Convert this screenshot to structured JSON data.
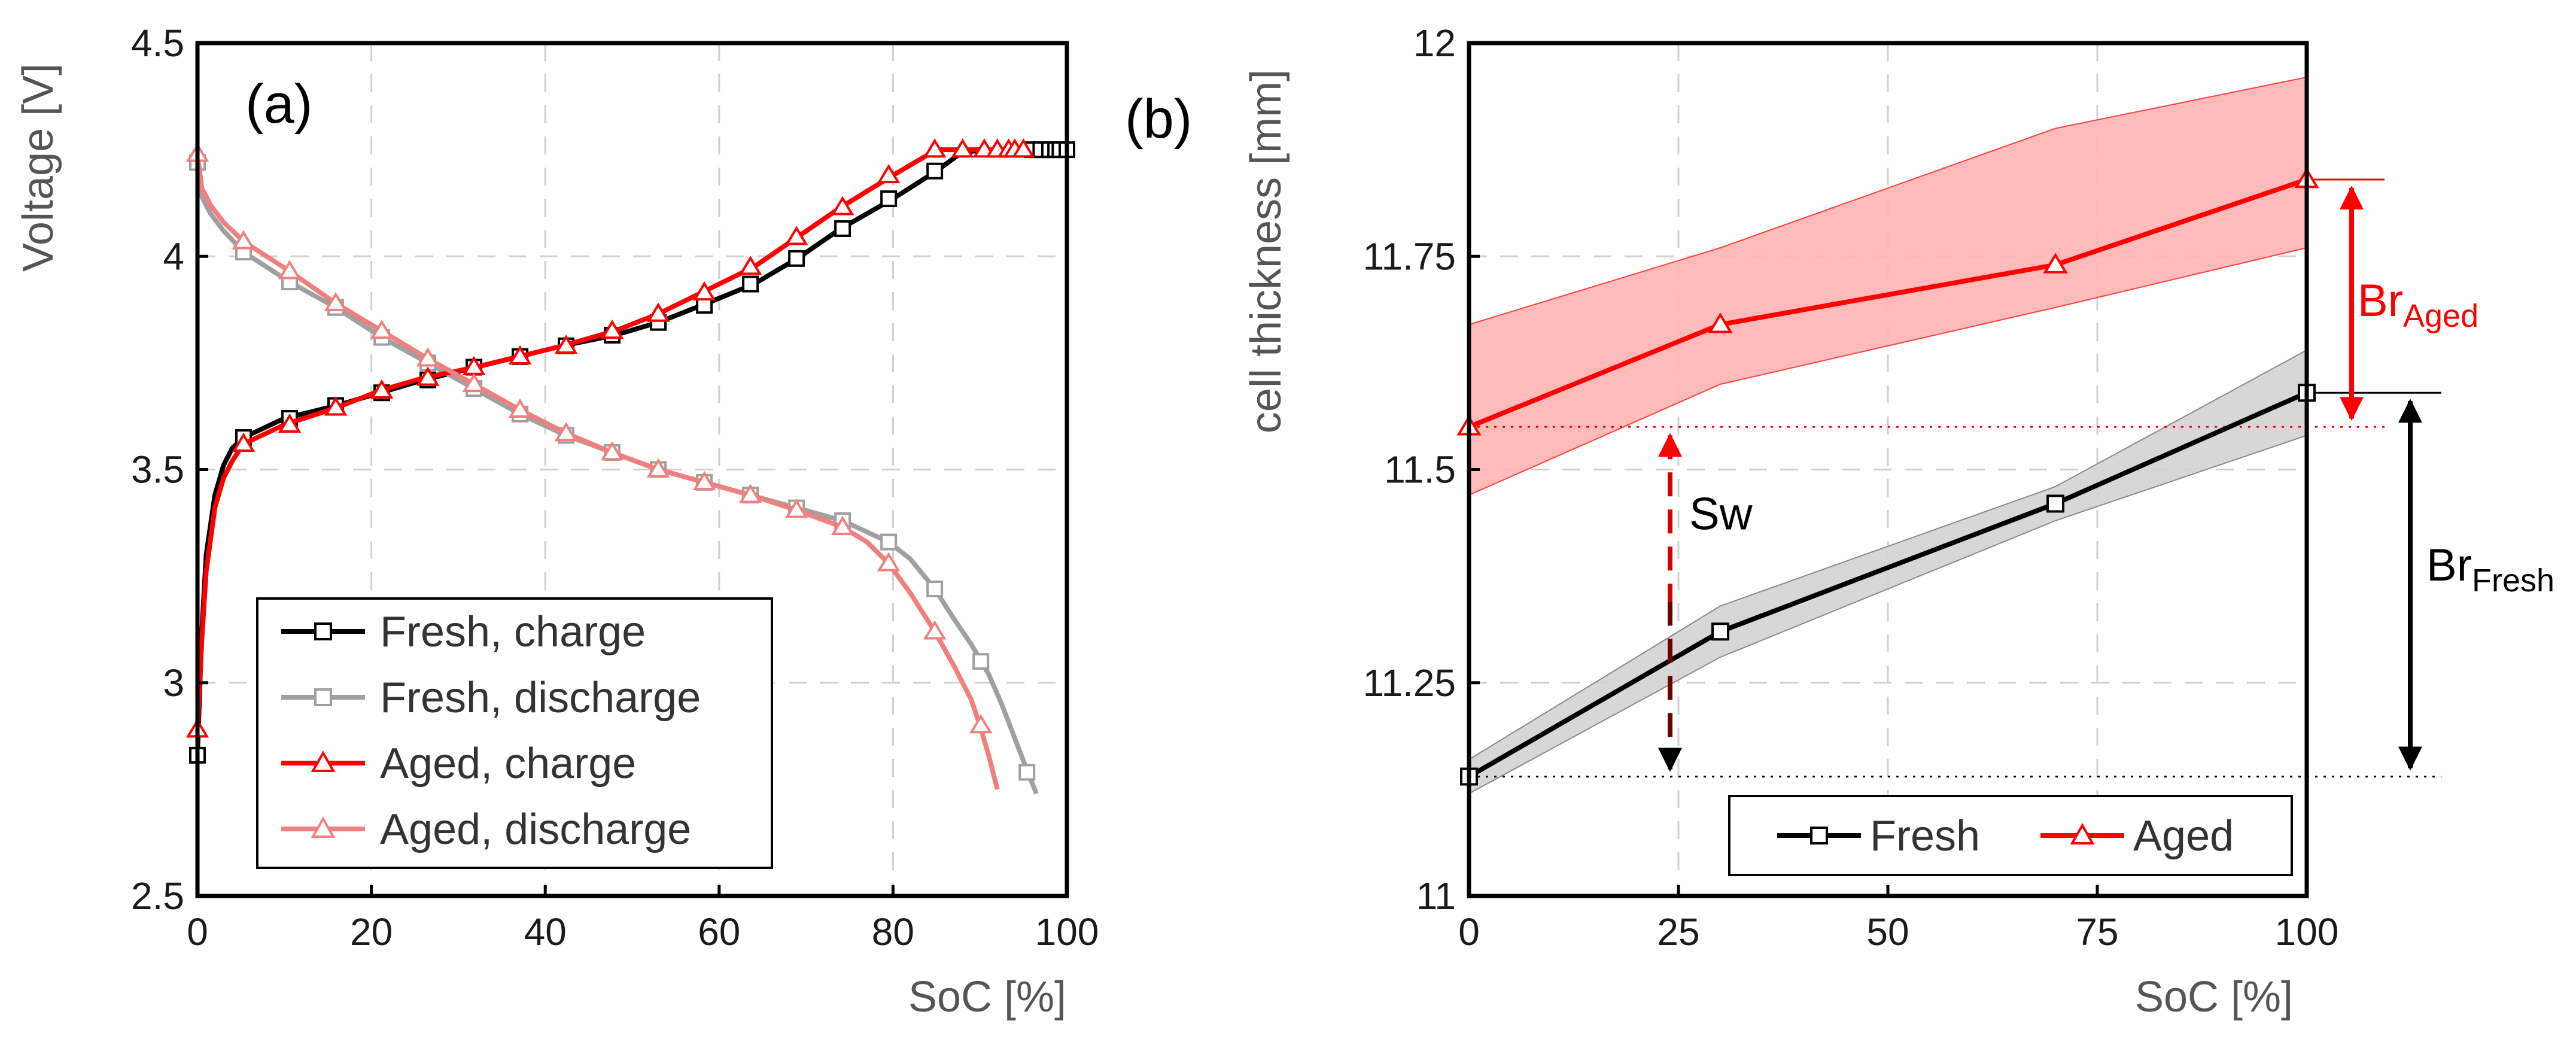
{
  "chart_data": [
    {
      "type": "line",
      "panel_label": "(a)",
      "xlabel": "SoC [%]",
      "ylabel": "Voltage [V]",
      "xlim": [
        0,
        100
      ],
      "ylim": [
        2.5,
        4.5
      ],
      "xticks": [
        0,
        20,
        40,
        60,
        80,
        100
      ],
      "yticks": [
        2.5,
        3,
        3.5,
        4,
        4.5
      ],
      "ytick_labels": [
        "2.5",
        "3",
        "3.5",
        "4",
        "4.5"
      ],
      "grid": true,
      "legend_position": "bottom-center",
      "series": [
        {
          "name": "Fresh, charge",
          "color": "#000000",
          "marker": "square",
          "line_x": [
            0,
            0.5,
            1,
            2,
            3,
            4,
            5.3,
            10,
            16,
            21,
            26,
            32,
            37,
            42,
            48,
            53,
            58,
            64,
            69,
            74,
            80,
            85,
            88,
            92,
            95,
            97,
            98,
            99,
            100
          ],
          "line_y": [
            2.83,
            3.12,
            3.3,
            3.44,
            3.51,
            3.55,
            3.575,
            3.62,
            3.65,
            3.68,
            3.71,
            3.74,
            3.765,
            3.79,
            3.815,
            3.845,
            3.885,
            3.935,
            3.995,
            4.065,
            4.135,
            4.2,
            4.245,
            4.25,
            4.25,
            4.25,
            4.25,
            4.25,
            4.25
          ],
          "marker_x": [
            0,
            5.3,
            10.6,
            15.9,
            21.2,
            26.5,
            31.8,
            37.1,
            42.4,
            47.7,
            53,
            58.3,
            63.6,
            68.9,
            74.2,
            79.5,
            84.8,
            96,
            97,
            98,
            98.7,
            99.2,
            100
          ],
          "marker_y": [
            2.83,
            3.575,
            3.62,
            3.65,
            3.68,
            3.71,
            3.74,
            3.765,
            3.79,
            3.815,
            3.845,
            3.885,
            3.935,
            3.995,
            4.065,
            4.135,
            4.2,
            4.25,
            4.25,
            4.25,
            4.25,
            4.25,
            4.25
          ]
        },
        {
          "name": "Fresh, discharge",
          "color": "#a0a0a0",
          "marker": "square",
          "line_x": [
            0,
            0.5,
            1.5,
            3,
            5.3,
            10.6,
            15.9,
            21.2,
            26.5,
            31.8,
            37.1,
            42.4,
            47.7,
            53,
            58.3,
            63.6,
            68.9,
            74.2,
            79.5,
            82,
            84.8,
            87,
            89,
            91,
            92.5,
            94,
            95.5,
            96.5
          ],
          "line_y": [
            4.22,
            4.14,
            4.1,
            4.06,
            4.01,
            3.94,
            3.88,
            3.81,
            3.75,
            3.69,
            3.63,
            3.58,
            3.54,
            3.5,
            3.47,
            3.44,
            3.41,
            3.38,
            3.33,
            3.29,
            3.22,
            3.15,
            3.09,
            3.02,
            2.95,
            2.87,
            2.79,
            2.74
          ],
          "marker_x": [
            0,
            5.3,
            10.6,
            15.9,
            21.2,
            26.5,
            31.8,
            37.1,
            42.4,
            47.7,
            53,
            58.3,
            63.6,
            68.9,
            74.2,
            79.5,
            84.8,
            90.1,
            95.4
          ],
          "marker_y": [
            4.22,
            4.01,
            3.94,
            3.88,
            3.81,
            3.75,
            3.69,
            3.63,
            3.58,
            3.54,
            3.5,
            3.47,
            3.44,
            3.41,
            3.38,
            3.33,
            3.22,
            3.05,
            2.79
          ]
        },
        {
          "name": "Aged, charge",
          "color": "#ff0000",
          "marker": "triangle",
          "line_x": [
            0,
            0.5,
            1,
            2,
            3,
            4,
            5.3,
            10,
            16,
            21,
            26,
            32,
            37,
            42,
            48,
            53,
            58,
            64,
            69,
            74,
            80,
            85,
            88,
            95
          ],
          "line_y": [
            2.89,
            3.1,
            3.26,
            3.41,
            3.48,
            3.52,
            3.56,
            3.605,
            3.645,
            3.685,
            3.715,
            3.74,
            3.765,
            3.79,
            3.825,
            3.865,
            3.915,
            3.975,
            4.045,
            4.115,
            4.19,
            4.25,
            4.25,
            4.25
          ],
          "marker_x": [
            0,
            5.3,
            10.6,
            15.9,
            21.2,
            26.5,
            31.8,
            37.1,
            42.4,
            47.7,
            53,
            58.3,
            63.6,
            68.9,
            74.2,
            79.5,
            84.8,
            88,
            90.5,
            92,
            93.3,
            94,
            95
          ],
          "marker_y": [
            2.89,
            3.56,
            3.605,
            3.645,
            3.685,
            3.715,
            3.74,
            3.765,
            3.79,
            3.825,
            3.865,
            3.915,
            3.975,
            4.045,
            4.115,
            4.19,
            4.25,
            4.25,
            4.25,
            4.25,
            4.25,
            4.25,
            4.25
          ]
        },
        {
          "name": "Aged, discharge",
          "color": "#f08080",
          "marker": "triangle",
          "line_x": [
            0,
            0.5,
            1.5,
            3,
            5.3,
            10.6,
            15.9,
            21.2,
            26.5,
            31.8,
            37.1,
            42.4,
            47.7,
            53,
            58.3,
            63.6,
            68.9,
            74.2,
            77,
            79.5,
            82,
            84.8,
            87,
            89,
            90,
            91,
            92
          ],
          "line_y": [
            4.24,
            4.16,
            4.12,
            4.08,
            4.035,
            3.965,
            3.89,
            3.825,
            3.76,
            3.7,
            3.64,
            3.585,
            3.54,
            3.5,
            3.47,
            3.44,
            3.405,
            3.365,
            3.33,
            3.28,
            3.21,
            3.12,
            3.04,
            2.96,
            2.9,
            2.83,
            2.75
          ],
          "marker_x": [
            0,
            5.3,
            10.6,
            15.9,
            21.2,
            26.5,
            31.8,
            37.1,
            42.4,
            47.7,
            53,
            58.3,
            63.6,
            68.9,
            74.2,
            79.5,
            84.8,
            90.1
          ],
          "marker_y": [
            4.24,
            4.035,
            3.965,
            3.89,
            3.825,
            3.76,
            3.7,
            3.64,
            3.585,
            3.54,
            3.5,
            3.47,
            3.44,
            3.405,
            3.365,
            3.28,
            3.12,
            2.9
          ]
        }
      ]
    },
    {
      "type": "line",
      "panel_label": "(b)",
      "xlabel": "SoC [%]",
      "ylabel": "cell thickness [mm]",
      "xlim": [
        0,
        100
      ],
      "ylim": [
        11,
        12
      ],
      "xticks": [
        0,
        25,
        50,
        75,
        100
      ],
      "yticks": [
        11,
        11.25,
        11.5,
        11.75,
        12
      ],
      "ytick_labels": [
        "11",
        "11.25",
        "11.5",
        "11.75",
        "12"
      ],
      "grid": true,
      "legend_position": "bottom-right",
      "series": [
        {
          "name": "Fresh",
          "color": "#000000",
          "marker": "square",
          "x": [
            0,
            30,
            70,
            100
          ],
          "y": [
            11.14,
            11.31,
            11.46,
            11.59
          ],
          "band_upper": [
            11.16,
            11.34,
            11.48,
            11.64
          ],
          "band_lower": [
            11.12,
            11.28,
            11.44,
            11.54
          ]
        },
        {
          "name": "Aged",
          "color": "#ff0000",
          "marker": "triangle",
          "x": [
            0,
            30,
            70,
            100
          ],
          "y": [
            11.55,
            11.67,
            11.74,
            11.84
          ],
          "band_upper": [
            11.67,
            11.76,
            11.9,
            11.96
          ],
          "band_lower": [
            11.47,
            11.6,
            11.69,
            11.76
          ]
        }
      ],
      "annotations": {
        "sw_label": "Sw",
        "br_label": "Br",
        "br_aged_sub": "Aged",
        "br_fresh_sub": "Fresh",
        "sw_at_x": 24
      }
    }
  ]
}
